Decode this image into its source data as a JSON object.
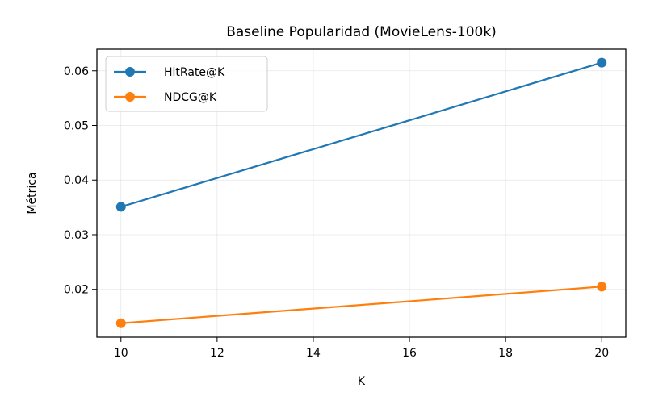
{
  "chart_data": {
    "type": "line",
    "title": "Baseline Popularidad (MovieLens-100k)",
    "xlabel": "K",
    "ylabel": "Métrica",
    "x": [
      10,
      20
    ],
    "xlim": [
      9.5,
      20.5
    ],
    "ylim": [
      0.01125,
      0.06395
    ],
    "xticks": [
      10,
      12,
      14,
      16,
      18,
      20
    ],
    "yticks": [
      0.02,
      0.03,
      0.04,
      0.05,
      0.06
    ],
    "xtick_labels": [
      "10",
      "12",
      "14",
      "16",
      "18",
      "20"
    ],
    "ytick_labels": [
      "0.02",
      "0.03",
      "0.04",
      "0.05",
      "0.06"
    ],
    "grid": true,
    "legend_position": "top-left",
    "series": [
      {
        "name": "HitRate@K",
        "color": "#1f77b4",
        "values": [
          0.0351,
          0.0615
        ]
      },
      {
        "name": "NDCG@K",
        "color": "#ff7f0e",
        "values": [
          0.0138,
          0.0205
        ]
      }
    ]
  }
}
